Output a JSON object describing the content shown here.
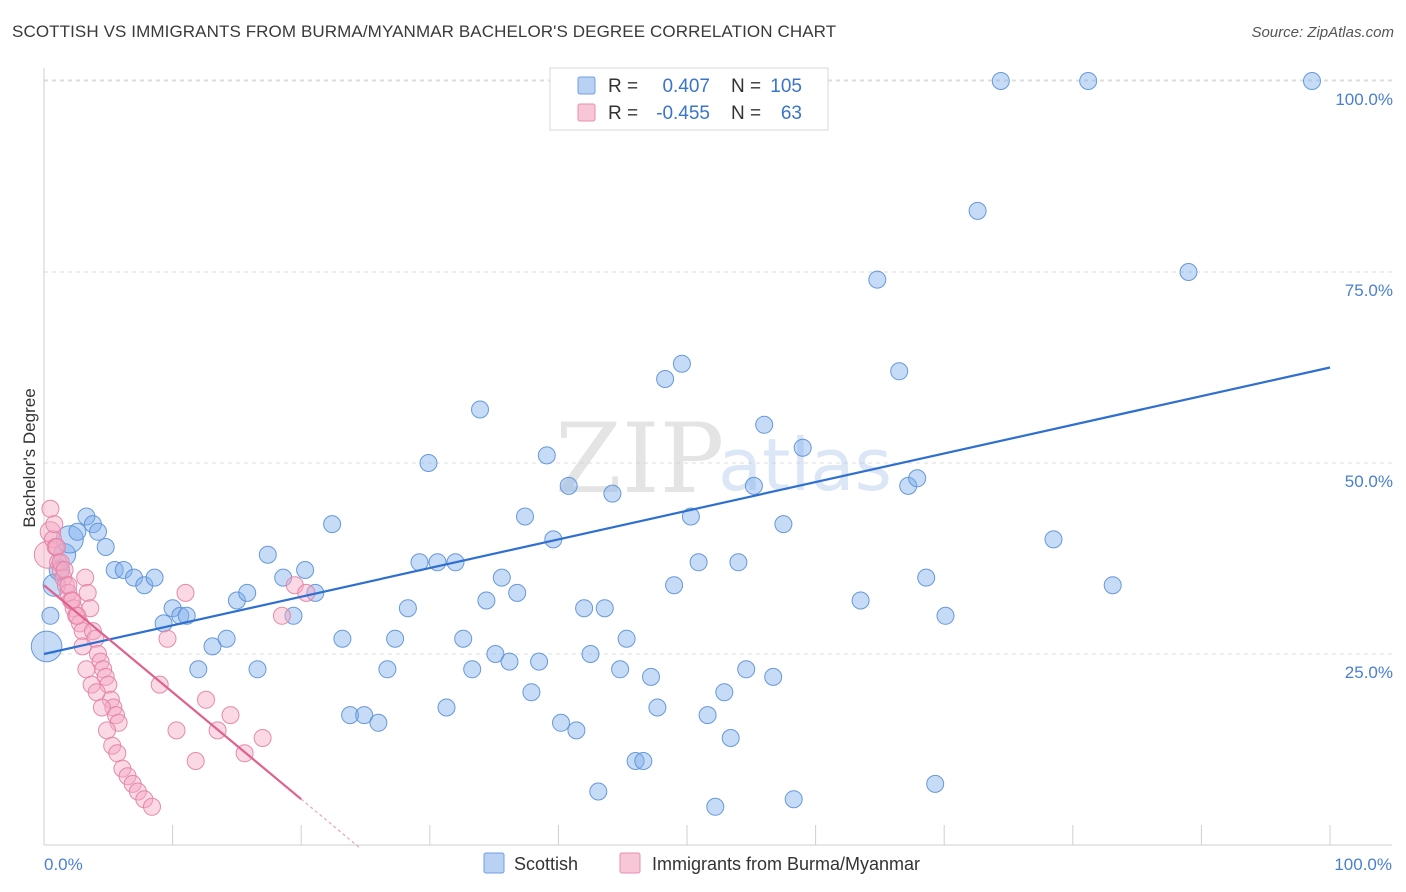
{
  "chart_data": {
    "type": "scatter",
    "title": "SCOTTISH VS IMMIGRANTS FROM BURMA/MYANMAR BACHELOR'S DEGREE CORRELATION CHART",
    "source": "Source: ZipAtlas.com",
    "watermark": {
      "zip": "ZIP",
      "atlas": "atlas"
    },
    "xlabel": "",
    "ylabel": "Bachelor's Degree",
    "xlim": [
      0,
      100
    ],
    "ylim": [
      0,
      102
    ],
    "x_tick_labels": [
      "0.0%",
      "100.0%"
    ],
    "y_ticks": [
      {
        "value": 25,
        "label": "25.0%"
      },
      {
        "value": 50,
        "label": "50.0%"
      },
      {
        "value": 75,
        "label": "75.0%"
      },
      {
        "value": 100,
        "label": "100.0%"
      }
    ],
    "legend_stats": [
      {
        "r_label": "R =",
        "r_value": "0.407",
        "n_label": "N =",
        "n_value": "105"
      },
      {
        "r_label": "R =",
        "r_value": "-0.455",
        "n_label": "N =",
        "n_value": "63"
      }
    ],
    "series": [
      {
        "name": "Scottish",
        "color": "#7fb0ec",
        "stroke": "#5b8fd6",
        "line_color": "#2e6fd0",
        "trend": {
          "x": [
            0,
            100
          ],
          "y": [
            25.0,
            62.5
          ]
        },
        "points": [
          [
            0.2,
            26,
            1.8
          ],
          [
            0.5,
            30,
            1.0
          ],
          [
            0.8,
            34,
            1.3
          ],
          [
            1.2,
            36,
            1.2
          ],
          [
            1.6,
            38,
            1.3
          ],
          [
            2.0,
            40,
            1.6
          ],
          [
            2.6,
            41,
            1.0
          ],
          [
            3.3,
            43,
            1.0
          ],
          [
            3.8,
            42,
            1.0
          ],
          [
            4.2,
            41,
            1.0
          ],
          [
            4.8,
            39,
            1.0
          ],
          [
            5.5,
            36,
            1.0
          ],
          [
            6.2,
            36,
            1.0
          ],
          [
            7.0,
            35,
            1.0
          ],
          [
            7.8,
            34,
            1.0
          ],
          [
            8.6,
            35,
            1.0
          ],
          [
            9.3,
            29,
            1.0
          ],
          [
            10.0,
            31,
            1.0
          ],
          [
            10.6,
            30,
            1.0
          ],
          [
            11.1,
            30,
            1.0
          ],
          [
            12.0,
            23,
            1.0
          ],
          [
            13.1,
            26,
            1.0
          ],
          [
            14.2,
            27,
            1.0
          ],
          [
            15.0,
            32,
            1.0
          ],
          [
            15.8,
            33,
            1.0
          ],
          [
            16.6,
            23,
            1.0
          ],
          [
            17.4,
            38,
            1.0
          ],
          [
            18.6,
            35,
            1.0
          ],
          [
            19.4,
            30,
            1.0
          ],
          [
            20.3,
            36,
            1.0
          ],
          [
            21.1,
            33,
            1.0
          ],
          [
            22.4,
            42,
            1.0
          ],
          [
            23.2,
            27,
            1.0
          ],
          [
            23.8,
            17,
            1.0
          ],
          [
            24.9,
            17,
            1.0
          ],
          [
            26.0,
            16,
            1.0
          ],
          [
            26.7,
            23,
            1.0
          ],
          [
            27.3,
            27,
            1.0
          ],
          [
            28.3,
            31,
            1.0
          ],
          [
            29.2,
            37,
            1.0
          ],
          [
            29.9,
            50,
            1.0
          ],
          [
            30.6,
            37,
            1.0
          ],
          [
            31.3,
            18,
            1.0
          ],
          [
            32.0,
            37,
            1.0
          ],
          [
            32.6,
            27,
            1.0
          ],
          [
            33.3,
            23,
            1.0
          ],
          [
            33.9,
            57,
            1.0
          ],
          [
            34.4,
            32,
            1.0
          ],
          [
            35.1,
            25,
            1.0
          ],
          [
            35.6,
            35,
            1.0
          ],
          [
            36.2,
            24,
            1.0
          ],
          [
            36.8,
            33,
            1.0
          ],
          [
            37.4,
            43,
            1.0
          ],
          [
            37.9,
            20,
            1.0
          ],
          [
            38.5,
            24,
            1.0
          ],
          [
            39.1,
            51,
            1.0
          ],
          [
            39.6,
            40,
            1.0
          ],
          [
            40.2,
            16,
            1.0
          ],
          [
            40.8,
            47,
            1.0
          ],
          [
            41.4,
            15,
            1.0
          ],
          [
            42.0,
            31,
            1.0
          ],
          [
            42.5,
            25,
            1.0
          ],
          [
            43.1,
            7,
            1.0
          ],
          [
            43.6,
            31,
            1.0
          ],
          [
            44.2,
            46,
            1.0
          ],
          [
            44.8,
            23,
            1.0
          ],
          [
            45.3,
            27,
            1.0
          ],
          [
            46.0,
            11,
            1.0
          ],
          [
            46.6,
            11,
            1.0
          ],
          [
            47.2,
            22,
            1.0
          ],
          [
            47.7,
            18,
            1.0
          ],
          [
            48.3,
            61,
            1.0
          ],
          [
            49.0,
            34,
            1.0
          ],
          [
            49.6,
            63,
            1.0
          ],
          [
            50.3,
            43,
            1.0
          ],
          [
            50.9,
            37,
            1.0
          ],
          [
            51.6,
            17,
            1.0
          ],
          [
            52.2,
            5,
            1.0
          ],
          [
            52.9,
            20,
            1.0
          ],
          [
            53.4,
            14,
            1.0
          ],
          [
            54.0,
            37,
            1.0
          ],
          [
            54.6,
            23,
            1.0
          ],
          [
            55.2,
            47,
            1.0
          ],
          [
            56.0,
            55,
            1.0
          ],
          [
            56.7,
            22,
            1.0
          ],
          [
            57.5,
            42,
            1.0
          ],
          [
            58.3,
            6,
            1.0
          ],
          [
            59.0,
            52,
            1.0
          ],
          [
            63.5,
            32,
            1.0
          ],
          [
            64.8,
            74,
            1.0
          ],
          [
            66.5,
            62,
            1.0
          ],
          [
            67.2,
            47,
            1.0
          ],
          [
            67.9,
            48,
            1.0
          ],
          [
            68.6,
            35,
            1.0
          ],
          [
            69.3,
            8,
            1.0
          ],
          [
            70.1,
            30,
            1.0
          ],
          [
            72.6,
            83,
            1.0
          ],
          [
            74.4,
            100,
            1.0
          ],
          [
            78.5,
            40,
            1.0
          ],
          [
            81.2,
            100,
            1.0
          ],
          [
            83.1,
            34,
            1.0
          ],
          [
            89.0,
            75,
            1.0
          ],
          [
            98.6,
            100,
            1.0
          ]
        ]
      },
      {
        "name": "Immigrants from Burma/Myanmar",
        "color": "#f4a9c3",
        "stroke": "#e27fa3",
        "line_color": "#e0608e",
        "trend": {
          "x": [
            0,
            20
          ],
          "y": [
            34.0,
            6.0
          ]
        },
        "trend_dashed": {
          "x": [
            20,
            24.5
          ],
          "y": [
            6.0,
            -0.3
          ]
        },
        "points": [
          [
            0.3,
            38,
            1.6
          ],
          [
            0.5,
            41,
            1.2
          ],
          [
            0.7,
            40,
            1.0
          ],
          [
            0.9,
            39,
            1.0
          ],
          [
            1.1,
            37,
            1.0
          ],
          [
            1.3,
            36,
            1.0
          ],
          [
            1.5,
            35,
            1.0
          ],
          [
            1.7,
            34,
            1.0
          ],
          [
            1.9,
            33,
            1.0
          ],
          [
            2.1,
            32,
            1.0
          ],
          [
            2.3,
            31,
            1.0
          ],
          [
            2.5,
            30,
            1.0
          ],
          [
            2.8,
            29,
            1.0
          ],
          [
            3.0,
            28,
            1.0
          ],
          [
            3.2,
            35,
            1.0
          ],
          [
            3.4,
            33,
            1.0
          ],
          [
            3.6,
            31,
            1.0
          ],
          [
            3.8,
            28,
            1.0
          ],
          [
            4.0,
            27,
            1.0
          ],
          [
            4.2,
            25,
            1.0
          ],
          [
            4.4,
            24,
            1.0
          ],
          [
            4.6,
            23,
            1.0
          ],
          [
            4.8,
            22,
            1.0
          ],
          [
            5.0,
            21,
            1.0
          ],
          [
            5.2,
            19,
            1.0
          ],
          [
            5.4,
            18,
            1.0
          ],
          [
            5.6,
            17,
            1.0
          ],
          [
            5.8,
            16,
            1.0
          ],
          [
            0.5,
            44,
            1.0
          ],
          [
            0.8,
            42,
            1.0
          ],
          [
            1.0,
            39,
            1.0
          ],
          [
            1.3,
            37,
            1.0
          ],
          [
            1.6,
            36,
            1.0
          ],
          [
            1.9,
            34,
            1.0
          ],
          [
            2.2,
            32,
            1.0
          ],
          [
            2.6,
            30,
            1.0
          ],
          [
            3.0,
            26,
            1.0
          ],
          [
            3.3,
            23,
            1.0
          ],
          [
            3.7,
            21,
            1.0
          ],
          [
            4.1,
            20,
            1.0
          ],
          [
            4.5,
            18,
            1.0
          ],
          [
            4.9,
            15,
            1.0
          ],
          [
            5.3,
            13,
            1.0
          ],
          [
            5.7,
            12,
            1.0
          ],
          [
            6.1,
            10,
            1.0
          ],
          [
            6.5,
            9,
            1.0
          ],
          [
            6.9,
            8,
            1.0
          ],
          [
            7.3,
            7,
            1.0
          ],
          [
            7.8,
            6,
            1.0
          ],
          [
            8.4,
            5,
            1.0
          ],
          [
            9.0,
            21,
            1.0
          ],
          [
            9.6,
            27,
            1.0
          ],
          [
            10.3,
            15,
            1.0
          ],
          [
            11.0,
            33,
            1.0
          ],
          [
            11.8,
            11,
            1.0
          ],
          [
            12.6,
            19,
            1.0
          ],
          [
            13.5,
            15,
            1.0
          ],
          [
            14.5,
            17,
            1.0
          ],
          [
            15.6,
            12,
            1.0
          ],
          [
            17.0,
            14,
            1.0
          ],
          [
            18.5,
            30,
            1.0
          ],
          [
            19.5,
            34,
            1.0
          ],
          [
            20.4,
            33,
            1.0
          ]
        ]
      }
    ]
  }
}
